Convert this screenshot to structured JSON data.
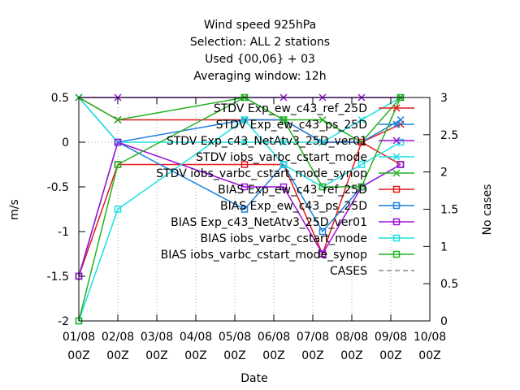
{
  "chart_data": {
    "type": "line",
    "title_lines": [
      "Wind speed 925hPa",
      "Selection: ALL      2 stations",
      "Used {00,06} + 03",
      "Averaging window: 12h"
    ],
    "xlabel": "Date",
    "ylabel": "m/s",
    "y2label": "No cases",
    "xlim": [
      0,
      9
    ],
    "ylim": [
      -2,
      0.5
    ],
    "y2lim": [
      0,
      3
    ],
    "x_ticks": [
      {
        "x": 0,
        "line1": "01/08",
        "line2": "00Z"
      },
      {
        "x": 1,
        "line1": "02/08",
        "line2": "00Z"
      },
      {
        "x": 2,
        "line1": "03/08",
        "line2": "00Z"
      },
      {
        "x": 3,
        "line1": "04/08",
        "line2": "00Z"
      },
      {
        "x": 4,
        "line1": "05/08",
        "line2": "00Z"
      },
      {
        "x": 5,
        "line1": "06/08",
        "line2": "00Z"
      },
      {
        "x": 6,
        "line1": "07/08",
        "line2": "00Z"
      },
      {
        "x": 7,
        "line1": "08/08",
        "line2": "00Z"
      },
      {
        "x": 8,
        "line1": "09/08",
        "line2": "00Z"
      },
      {
        "x": 9,
        "line1": "10/08",
        "line2": "00Z"
      }
    ],
    "y_ticks": [
      {
        "value": 0.5,
        "label": "0.5"
      },
      {
        "value": 0,
        "label": "0"
      },
      {
        "value": -0.5,
        "label": "-0.5"
      },
      {
        "value": -1,
        "label": "-1"
      },
      {
        "value": -1.5,
        "label": "-1.5"
      },
      {
        "value": -2,
        "label": "-2"
      }
    ],
    "y2_ticks": [
      {
        "value": 3,
        "label": "3"
      },
      {
        "value": 2.5,
        "label": "2.5"
      },
      {
        "value": 2,
        "label": "2"
      },
      {
        "value": 1.5,
        "label": "1.5"
      },
      {
        "value": 1,
        "label": "1"
      },
      {
        "value": 0.5,
        "label": "0.5"
      },
      {
        "value": 0,
        "label": "0"
      }
    ],
    "x_points": [
      0,
      1,
      4.25,
      5.25,
      6.25,
      7.25,
      8.25
    ],
    "legend_position": "top-right",
    "series": [
      {
        "name": "STDV Exp_ew_c43_ref_25D",
        "color": "#e41a1c",
        "marker": "x",
        "axis": "y",
        "values": [
          0.5,
          0.25,
          0.25,
          0.25,
          0,
          0,
          0.2
        ]
      },
      {
        "name": "STDV Exp_ew_c43_ps_25D",
        "color": "#1c7fdc",
        "marker": "x",
        "axis": "y",
        "values": [
          0.5,
          0,
          0.25,
          0.25,
          0,
          0,
          0.25
        ]
      },
      {
        "name": "STDV Exp_c43_NetAtv3_25D_ver01",
        "color": "#9b14d6",
        "marker": "x",
        "axis": "y",
        "values": [
          0.5,
          0.5,
          0.5,
          0.5,
          0.5,
          0.5,
          0.5
        ]
      },
      {
        "name": "STDV iobs_varbc_cstart_mode",
        "color": "#1ae0e0",
        "marker": "x",
        "axis": "y",
        "values": [
          0.5,
          0,
          0,
          0,
          0,
          0.25,
          0.5
        ]
      },
      {
        "name": "STDV iobs_varbc_cstart_mode_synop",
        "color": "#22b222",
        "marker": "x",
        "axis": "y",
        "values": [
          0.5,
          0.25,
          0.5,
          0.25,
          0.25,
          0,
          0.5
        ]
      },
      {
        "name": "BIAS Exp_ew_c43_ref_25D",
        "color": "#e41a1c",
        "marker": "square",
        "axis": "y",
        "values": [
          -1.5,
          -0.25,
          -0.25,
          -0.25,
          -1.25,
          0,
          -0.25
        ]
      },
      {
        "name": "BIAS Exp_ew_c43_ps_25D",
        "color": "#1c7fdc",
        "marker": "square",
        "axis": "y",
        "values": [
          -1.5,
          0,
          -0.75,
          -0.25,
          -1,
          -0.5,
          -0.25
        ]
      },
      {
        "name": "BIAS Exp_c43_NetAtv3_25D_ver01",
        "color": "#9b14d6",
        "marker": "square",
        "axis": "y",
        "values": [
          -1.5,
          0,
          -0.5,
          -0.5,
          -1.25,
          -0.5,
          -0.25
        ]
      },
      {
        "name": "BIAS iobs_varbc_cstart_mode",
        "color": "#1ae0e0",
        "marker": "square",
        "axis": "y",
        "values": [
          -2,
          -0.75,
          0.25,
          -0.25,
          -0.5,
          -0.25,
          0
        ]
      },
      {
        "name": "BIAS iobs_varbc_cstart_mode_synop",
        "color": "#22b222",
        "marker": "square",
        "axis": "y",
        "values": [
          -2,
          -0.25,
          0.5,
          0.25,
          -0.5,
          -0.5,
          0.5
        ]
      },
      {
        "name": "CASES",
        "color": "#888888",
        "marker": "none",
        "axis": "y2",
        "dashed": true,
        "values": []
      }
    ]
  }
}
